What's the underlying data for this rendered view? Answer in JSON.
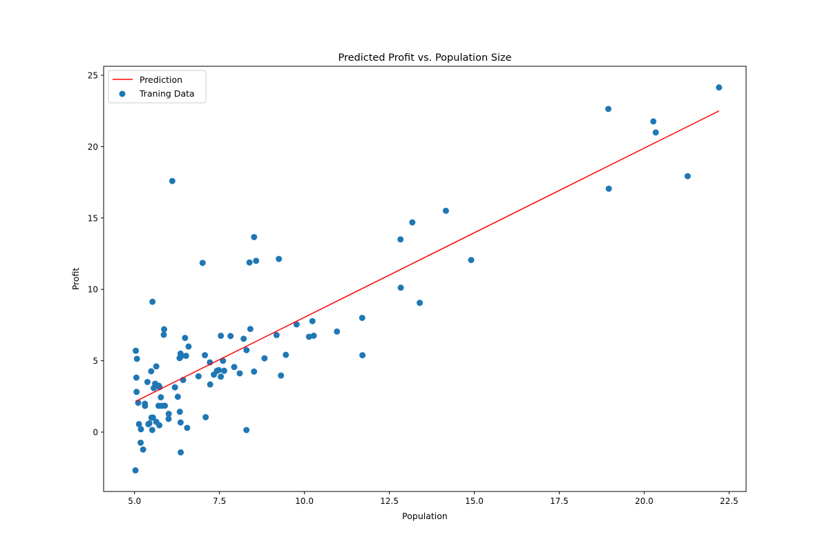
{
  "chart_data": {
    "type": "scatter",
    "title": "Predicted Profit vs. Population Size",
    "xlabel": "Population",
    "ylabel": "Profit",
    "xlim": [
      4.09,
      23.0
    ],
    "ylim": [
      -4.16,
      25.63
    ],
    "xticks": [
      5.0,
      7.5,
      10.0,
      12.5,
      15.0,
      17.5,
      20.0,
      22.5
    ],
    "xtick_labels": [
      "5.0",
      "7.5",
      "10.0",
      "12.5",
      "15.0",
      "17.5",
      "20.0",
      "22.5"
    ],
    "yticks": [
      0,
      5,
      10,
      15,
      20,
      25
    ],
    "ytick_labels": [
      "0",
      "5",
      "10",
      "15",
      "20",
      "25"
    ],
    "grid": false,
    "legend_position": "top-left",
    "series": [
      {
        "name": "Prediction",
        "type": "line",
        "color": "#ff0000",
        "x": [
          5.0269,
          22.203
        ],
        "y": [
          2.15,
          22.5
        ]
      },
      {
        "name": "Traning Data",
        "type": "scatter",
        "color": "#1f77b4",
        "points": [
          [
            6.1101,
            17.592
          ],
          [
            5.5277,
            9.1302
          ],
          [
            8.5186,
            13.662
          ],
          [
            7.0032,
            11.854
          ],
          [
            5.8598,
            6.8233
          ],
          [
            8.3829,
            11.886
          ],
          [
            7.4764,
            4.3483
          ],
          [
            8.5781,
            12
          ],
          [
            6.4862,
            6.5987
          ],
          [
            5.0546,
            3.8166
          ],
          [
            5.7107,
            3.2522
          ],
          [
            14.164,
            15.505
          ],
          [
            5.734,
            3.1551
          ],
          [
            8.4084,
            7.2258
          ],
          [
            5.6407,
            0.71618
          ],
          [
            5.3794,
            3.5129
          ],
          [
            6.3654,
            5.3048
          ],
          [
            5.1301,
            0.56077
          ],
          [
            6.4296,
            3.6518
          ],
          [
            7.0708,
            5.3893
          ],
          [
            6.1891,
            3.1386
          ],
          [
            20.27,
            21.767
          ],
          [
            5.4901,
            4.263
          ],
          [
            6.3261,
            5.1875
          ],
          [
            5.5649,
            3.0825
          ],
          [
            18.945,
            22.638
          ],
          [
            12.828,
            13.501
          ],
          [
            10.957,
            7.0467
          ],
          [
            13.176,
            14.692
          ],
          [
            22.203,
            24.147
          ],
          [
            5.2524,
            -1.22
          ],
          [
            6.5894,
            5.9966
          ],
          [
            9.2482,
            12.134
          ],
          [
            5.8918,
            1.8495
          ],
          [
            8.2111,
            6.5426
          ],
          [
            7.9334,
            4.5623
          ],
          [
            8.0959,
            4.1164
          ],
          [
            5.6063,
            3.3928
          ],
          [
            12.836,
            10.117
          ],
          [
            6.3534,
            5.4974
          ],
          [
            5.4069,
            0.55657
          ],
          [
            6.8825,
            3.9115
          ],
          [
            11.708,
            5.3854
          ],
          [
            5.7737,
            2.4406
          ],
          [
            7.8247,
            6.7318
          ],
          [
            7.0931,
            1.0463
          ],
          [
            5.0702,
            5.1337
          ],
          [
            5.8014,
            1.844
          ],
          [
            11.7,
            8.0043
          ],
          [
            5.5416,
            1.0179
          ],
          [
            7.5402,
            6.7504
          ],
          [
            5.3077,
            1.8396
          ],
          [
            7.4239,
            4.2885
          ],
          [
            7.6031,
            4.9981
          ],
          [
            6.3328,
            1.4233
          ],
          [
            6.3589,
            -1.4211
          ],
          [
            6.2742,
            2.4756
          ],
          [
            5.6397,
            4.6042
          ],
          [
            9.3102,
            3.9624
          ],
          [
            9.4536,
            5.4141
          ],
          [
            8.8254,
            5.1694
          ],
          [
            5.1793,
            -0.74279
          ],
          [
            21.279,
            17.929
          ],
          [
            14.908,
            12.054
          ],
          [
            18.959,
            17.054
          ],
          [
            7.2182,
            4.8852
          ],
          [
            8.2951,
            5.7442
          ],
          [
            10.236,
            7.7754
          ],
          [
            5.4994,
            1.0173
          ],
          [
            20.341,
            20.992
          ],
          [
            10.136,
            6.6799
          ],
          [
            7.3345,
            4.0259
          ],
          [
            6.0062,
            1.2784
          ],
          [
            7.2259,
            3.3411
          ],
          [
            5.0269,
            -2.6807
          ],
          [
            6.5479,
            0.29678
          ],
          [
            7.5386,
            3.8845
          ],
          [
            5.0365,
            5.7014
          ],
          [
            10.274,
            6.7526
          ],
          [
            5.1077,
            2.0576
          ],
          [
            5.7292,
            0.47953
          ],
          [
            5.1884,
            0.20421
          ],
          [
            6.3557,
            0.67861
          ],
          [
            9.7687,
            7.5435
          ],
          [
            6.5159,
            5.3436
          ],
          [
            8.5172,
            4.2415
          ],
          [
            9.1802,
            6.7981
          ],
          [
            6.002,
            0.92695
          ],
          [
            5.5204,
            0.152
          ],
          [
            5.0594,
            2.8214
          ],
          [
            5.7077,
            1.8451
          ],
          [
            7.6366,
            4.2959
          ],
          [
            5.8707,
            7.2029
          ],
          [
            5.3054,
            1.9869
          ],
          [
            8.2934,
            0.14454
          ],
          [
            13.394,
            9.0551
          ],
          [
            5.4369,
            0.61705
          ]
        ]
      }
    ]
  }
}
